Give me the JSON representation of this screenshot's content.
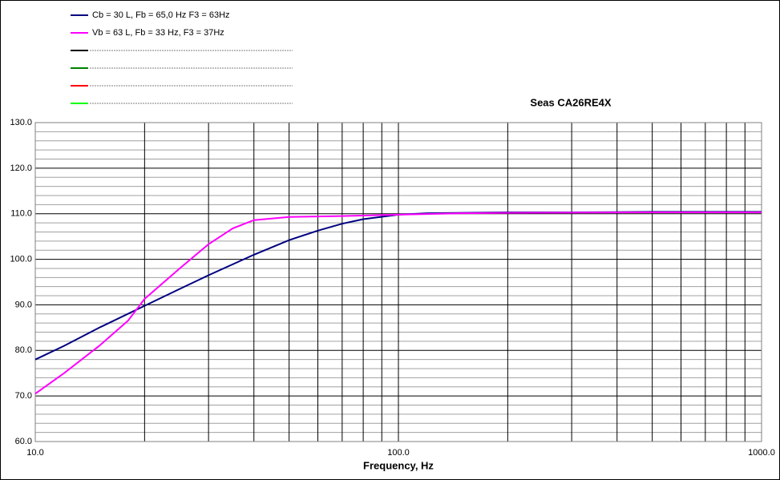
{
  "chart_data": {
    "type": "line",
    "title": "Seas CA26RE4X",
    "xlabel": "Frequency, Hz",
    "xscale": "log",
    "xlim": [
      10,
      1000
    ],
    "ylim": [
      60,
      130
    ],
    "xticks": [
      {
        "value": 10,
        "label": "10.0"
      },
      {
        "value": 100,
        "label": "100.0"
      },
      {
        "value": 1000,
        "label": "1000.0"
      }
    ],
    "yticks": [
      {
        "value": 60,
        "label": "60.0"
      },
      {
        "value": 70,
        "label": "70.0"
      },
      {
        "value": 80,
        "label": "80.0"
      },
      {
        "value": 90,
        "label": "90.0"
      },
      {
        "value": 100,
        "label": "100.0"
      },
      {
        "value": 110,
        "label": "110.0"
      },
      {
        "value": 120,
        "label": "120.0"
      },
      {
        "value": 130,
        "label": "130.0"
      }
    ],
    "xgrid": [
      20,
      30,
      40,
      50,
      60,
      70,
      80,
      90,
      200,
      300,
      400,
      500,
      600,
      700,
      800,
      900
    ],
    "ygrid": [
      62,
      64,
      66,
      68,
      72,
      74,
      76,
      78,
      82,
      84,
      86,
      88,
      92,
      94,
      96,
      98,
      102,
      104,
      106,
      108,
      112,
      114,
      116,
      118,
      122,
      124,
      126,
      128
    ],
    "legend": "top-left",
    "series": [
      {
        "name": "Cb = 30 L, Fb = 65,0 Hz F3 = 63Hz",
        "color": "#000080",
        "x": [
          10,
          12,
          15,
          20,
          25,
          30,
          40,
          50,
          60,
          70,
          80,
          100,
          120,
          150,
          200,
          300,
          500,
          1000
        ],
        "values": [
          78,
          81,
          85,
          89.8,
          93.5,
          96.5,
          101,
          104.2,
          106.3,
          107.8,
          108.8,
          109.8,
          110.1,
          110.2,
          110.3,
          110.3,
          110.4,
          110.4
        ]
      },
      {
        "name": "Vb = 63 L, Fb = 33 Hz, F3 = 37Hz",
        "color": "#ff00ff",
        "x": [
          10,
          12,
          15,
          18,
          20,
          25,
          30,
          35,
          40,
          50,
          70,
          100,
          150,
          200,
          500,
          1000
        ],
        "values": [
          70.5,
          75,
          81,
          86.5,
          91.3,
          98,
          103.3,
          106.8,
          108.6,
          109.3,
          109.5,
          109.8,
          110.1,
          110.2,
          110.3,
          110.3
        ]
      }
    ]
  }
}
